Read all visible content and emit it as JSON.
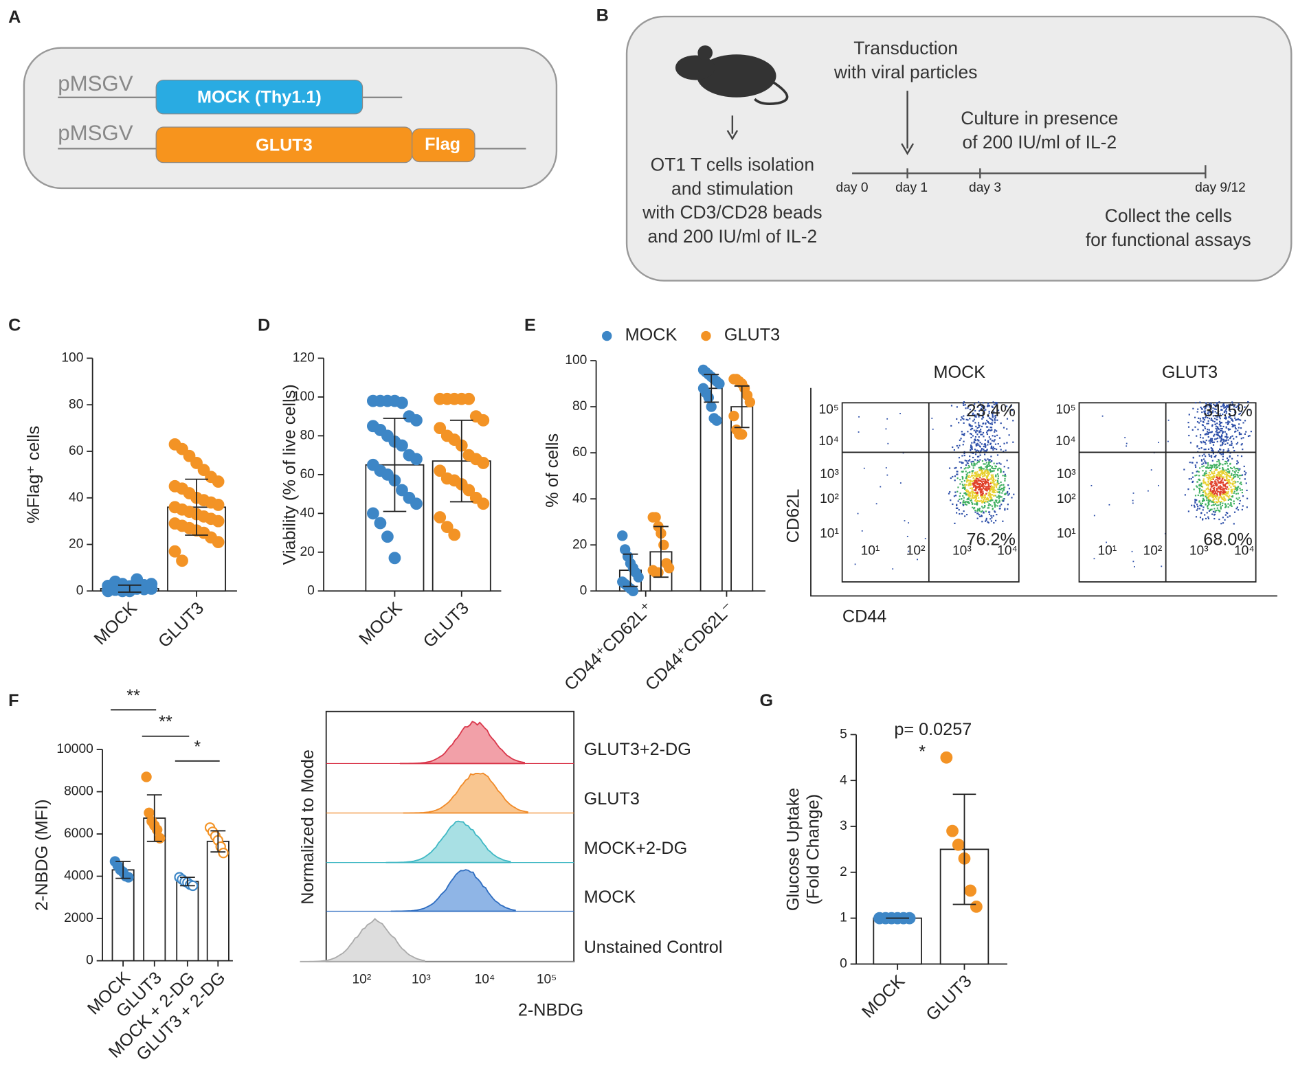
{
  "letters": [
    "A",
    "B",
    "C",
    "D",
    "E",
    "F",
    "G"
  ],
  "panel_a": {
    "vector": [
      "pMSGV",
      "pMSGV"
    ],
    "mock": "MOCK (Thy1.1)",
    "glut3": "GLUT3",
    "flag": "Flag"
  },
  "panel_b": {
    "transduction": [
      "Transduction",
      "with viral particles"
    ],
    "culture": [
      "Culture in presence",
      "of 200 IU/ml of IL-2"
    ],
    "isolation": [
      "OT1 T cells isolation",
      "and stimulation",
      "with CD3/CD28 beads",
      "and 200 IU/ml of IL-2"
    ],
    "days": [
      "day 0",
      "day 1",
      "day 3",
      "day 9/12"
    ],
    "collect": [
      "Collect the cells",
      "for functional assays"
    ]
  },
  "chart_data": [
    {
      "type": "bar",
      "ylabel": "%Flag⁺ cells",
      "categories": [
        "MOCK",
        "GLUT3"
      ],
      "colors": [
        "#3d86c6",
        "#f39325"
      ],
      "values": [
        1,
        36
      ],
      "errors": [
        1.5,
        12
      ],
      "points": [
        [
          0,
          0.5,
          1,
          1.5,
          2,
          2.5,
          3,
          1,
          0.5,
          0,
          2,
          5,
          1.5,
          1,
          0.5,
          2,
          3,
          0,
          1,
          0.8,
          1.2,
          2.2,
          4,
          0.3
        ],
        [
          63,
          61,
          58,
          55,
          52,
          49,
          47,
          45,
          44,
          42,
          40,
          39,
          38,
          37,
          36,
          35,
          34,
          33,
          32,
          31,
          30,
          29,
          28,
          27,
          26,
          25,
          23,
          21,
          17,
          13
        ]
      ],
      "ylim": [
        0,
        100
      ],
      "yticks": [
        0,
        20,
        40,
        60,
        80,
        100
      ]
    },
    {
      "type": "bar",
      "ylabel": "Viability (% of live cells)",
      "categories": [
        "MOCK",
        "GLUT3"
      ],
      "colors": [
        "#3d86c6",
        "#f39325"
      ],
      "values": [
        65,
        67
      ],
      "errors": [
        24,
        21
      ],
      "points": [
        [
          98,
          98,
          98,
          98,
          97,
          90,
          88,
          85,
          83,
          80,
          77,
          75,
          70,
          68,
          65,
          62,
          60,
          57,
          52,
          48,
          45,
          40,
          35,
          28,
          17
        ],
        [
          99,
          99,
          99,
          99,
          99,
          90,
          88,
          84,
          80,
          78,
          75,
          70,
          68,
          66,
          62,
          58,
          57,
          55,
          52,
          48,
          45,
          38,
          33,
          29
        ]
      ],
      "ylim": [
        0,
        120
      ],
      "yticks": [
        0,
        20,
        40,
        60,
        80,
        100,
        120
      ]
    },
    {
      "type": "grouped_bar",
      "ylabel": "% of  cells",
      "categories": [
        "CD44⁺CD62L⁺",
        "CD44⁺CD62L⁻"
      ],
      "series": [
        {
          "name": "MOCK",
          "color": "#3d86c6",
          "values": [
            9,
            88
          ],
          "errors": [
            7,
            6
          ],
          "points": [
            [
              24,
              18,
              15,
              12,
              10,
              8,
              6,
              4,
              3,
              2,
              1,
              0
            ],
            [
              96,
              95,
              94,
              93,
              92,
              91,
              90,
              88,
              86,
              84,
              80,
              75,
              74
            ]
          ]
        },
        {
          "name": "GLUT3",
          "color": "#f39325",
          "values": [
            17,
            80
          ],
          "errors": [
            11,
            9
          ],
          "points": [
            [
              32,
              32,
              28,
              25,
              20,
              12,
              10,
              9,
              8,
              8
            ],
            [
              92,
              92,
              91,
              90,
              88,
              85,
              82,
              76,
              70,
              68,
              68
            ]
          ]
        }
      ],
      "ylim": [
        0,
        100
      ],
      "yticks": [
        0,
        20,
        40,
        60,
        80,
        100
      ],
      "legend": "top"
    },
    {
      "type": "bar",
      "ylabel": "2-NBDG (MFI)",
      "categories": [
        "MOCK",
        "GLUT3",
        "MOCK + 2-DG",
        "GLUT3 + 2-DG"
      ],
      "colors": [
        "#3d86c6",
        "#f39325",
        "#3d86c6",
        "#f39325"
      ],
      "marker_filled": [
        true,
        true,
        false,
        false
      ],
      "values": [
        4300,
        6750,
        3750,
        5650
      ],
      "errors": [
        400,
        1100,
        200,
        500
      ],
      "points": [
        [
          4700,
          4500,
          4300,
          4200,
          4000,
          3950
        ],
        [
          8700,
          7000,
          6600,
          6400,
          6200,
          5800
        ],
        [
          3950,
          3850,
          3750,
          3700,
          3600,
          3550
        ],
        [
          6300,
          6100,
          5900,
          5700,
          5400,
          5100
        ]
      ],
      "annotations": [
        {
          "text": "**",
          "between": [
            "MOCK",
            "GLUT3"
          ]
        },
        {
          "text": "**",
          "between": [
            "GLUT3",
            "MOCK + 2-DG"
          ]
        },
        {
          "text": "*",
          "between": [
            "MOCK + 2-DG",
            "GLUT3 + 2-DG"
          ]
        }
      ],
      "ylim": [
        0,
        10000
      ],
      "yticks": [
        0,
        2000,
        4000,
        6000,
        8000,
        10000
      ]
    },
    {
      "type": "bar",
      "ylabel": [
        "Glucose Uptake",
        "(Fold Change)"
      ],
      "categories": [
        "MOCK",
        "GLUT3"
      ],
      "colors": [
        "#3d86c6",
        "#f39325"
      ],
      "values": [
        1,
        2.5
      ],
      "errors": [
        0,
        1.2
      ],
      "points": [
        [
          1,
          1,
          1,
          1,
          1,
          1
        ],
        [
          4.5,
          2.9,
          2.6,
          2.3,
          1.6,
          1.25
        ]
      ],
      "annotations": [
        {
          "text": "p= 0.0257"
        },
        {
          "text": "*"
        }
      ],
      "ylim": [
        0,
        5
      ],
      "yticks": [
        0,
        1,
        2,
        3,
        4,
        5
      ]
    }
  ],
  "flow_e": {
    "titles": [
      "MOCK",
      "GLUT3"
    ],
    "upper": [
      "23.4%",
      "31.5%"
    ],
    "lower": [
      "76.2%",
      "68.0%"
    ],
    "xlabel": "CD44",
    "ylabel": "CD62L",
    "yticks": [
      "10⁵",
      "10⁴",
      "10³",
      "10²",
      "10¹"
    ],
    "xticks": [
      "10¹",
      "10²",
      "10³",
      "10⁴"
    ]
  },
  "flow_f": {
    "labels": [
      "GLUT3+2-DG",
      "GLUT3",
      "MOCK+2-DG",
      "MOCK",
      "Unstained Control"
    ],
    "xlabel": "2-NBDG",
    "ylabel": "Normalized to Mode",
    "xticks": [
      "10²",
      "10³",
      "10⁴",
      "10⁵"
    ]
  }
}
